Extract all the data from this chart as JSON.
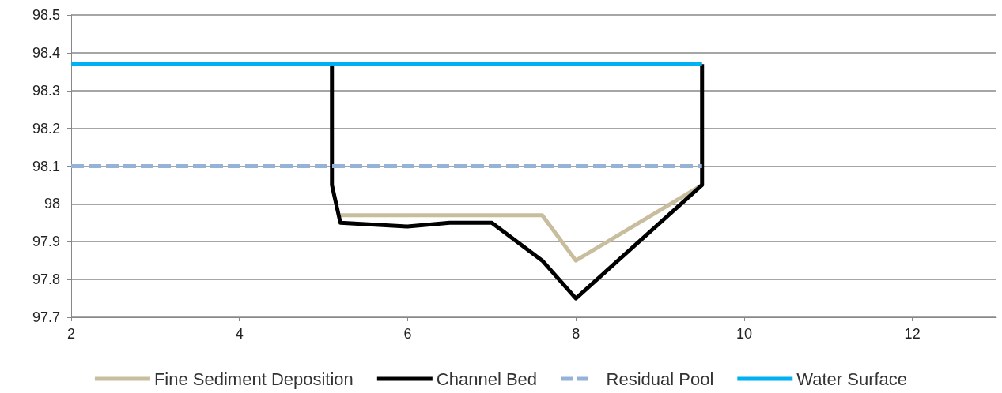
{
  "chart_data": {
    "type": "line",
    "marker": "none",
    "grid": "y",
    "legend": "bottom",
    "xlim": [
      2,
      13
    ],
    "xticks": [
      2,
      4,
      6,
      8,
      10,
      12
    ],
    "ylim": [
      97.7,
      98.5
    ],
    "yticks": [
      97.7,
      97.8,
      97.9,
      98,
      98.1,
      98.2,
      98.3,
      98.4,
      98.5
    ],
    "series": [
      {
        "name": "Fine Sediment Deposition",
        "color": "#c8bd9c",
        "x": [
          5.2,
          7.6,
          8,
          9.5
        ],
        "values": [
          97.97,
          97.97,
          97.85,
          98.05
        ]
      },
      {
        "name": "Channel Bed",
        "color": "#000000",
        "x": [
          5.1,
          5.1,
          5.2,
          6,
          6.5,
          7,
          7.6,
          8,
          9.5,
          9.5
        ],
        "values": [
          98.37,
          98.05,
          97.95,
          97.94,
          97.95,
          97.95,
          97.85,
          97.75,
          98.05,
          98.37
        ]
      },
      {
        "name": "Residual Pool",
        "color": "#95b3d7",
        "line_style": "dashed",
        "x": [
          2,
          9.5
        ],
        "values": [
          98.1,
          98.1
        ]
      },
      {
        "name": "Water Surface",
        "color": "#00b0f0",
        "x": [
          2,
          9.5
        ],
        "values": [
          98.37,
          98.37
        ]
      }
    ]
  }
}
